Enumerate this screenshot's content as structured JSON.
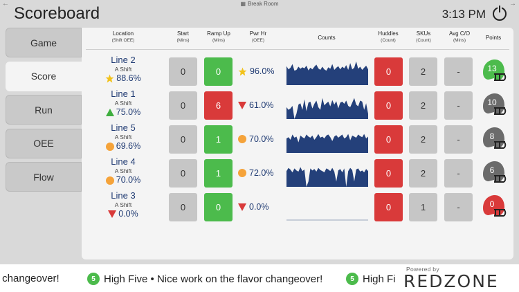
{
  "window": {
    "left_arrow": "←",
    "right_arrow": "→",
    "room_label": "Break Room",
    "room_icon": "grid-icon"
  },
  "app_title": "Scoreboard",
  "clock": "3:13 PM",
  "sidebar": {
    "items": [
      {
        "label": "Game",
        "active": false
      },
      {
        "label": "Score",
        "active": true
      },
      {
        "label": "Run",
        "active": false
      },
      {
        "label": "OEE",
        "active": false
      },
      {
        "label": "Flow",
        "active": false
      }
    ]
  },
  "columns": {
    "location": {
      "title": "Location",
      "sub": "(Shift OEE)"
    },
    "start": {
      "title": "Start",
      "sub": "(Mins)"
    },
    "ramp_up": {
      "title": "Ramp Up",
      "sub": "(Mins)"
    },
    "pwr_hr": {
      "title": "Pwr Hr",
      "sub": "(OEE)"
    },
    "counts": {
      "title": "Counts",
      "sub": ""
    },
    "huddles": {
      "title": "Huddles",
      "sub": "(Count)"
    },
    "skus": {
      "title": "SKUs",
      "sub": "(Count)"
    },
    "avg_co": {
      "title": "Avg C/O",
      "sub": "(Mins)"
    },
    "points": {
      "title": "Points",
      "sub": ""
    }
  },
  "rows": [
    {
      "line": "Line 2",
      "shift": "A Shift",
      "oee": "88.6%",
      "oee_icon": "star",
      "start": "0",
      "start_color": "gray",
      "ramp_up": "0",
      "ramp_color": "green",
      "pwr_hr": "96.0%",
      "pwr_icon": "star",
      "huddles": "0",
      "skus": "2",
      "avg_co": "-",
      "points": "13",
      "helmet_color": "#4cbb4c",
      "counts_fill": [
        0.72,
        0.6,
        0.66,
        0.8,
        0.55,
        0.58,
        0.7,
        0.62,
        0.68,
        0.64,
        0.74,
        0.56,
        0.66,
        0.6,
        0.7,
        0.78,
        0.64,
        0.58,
        0.7,
        0.6,
        0.55,
        0.68,
        0.62,
        0.8,
        0.58,
        0.66,
        0.72,
        0.6,
        0.7,
        0.64,
        0.76,
        0.58,
        0.84,
        0.6,
        0.66,
        0.9,
        0.62,
        0.7,
        0.58,
        0.66,
        0.74,
        0.6
      ]
    },
    {
      "line": "Line 1",
      "shift": "A Shift",
      "oee": "75.0%",
      "oee_icon": "up",
      "start": "0",
      "start_color": "gray",
      "ramp_up": "6",
      "ramp_color": "red",
      "pwr_hr": "61.0%",
      "pwr_icon": "down",
      "huddles": "0",
      "skus": "2",
      "avg_co": "-",
      "points": "10",
      "helmet_color": "#6b6b6b",
      "counts_fill": [
        0.45,
        0.35,
        0.4,
        0.5,
        0.0,
        0.2,
        0.55,
        0.6,
        0.35,
        0.75,
        0.3,
        0.62,
        0.66,
        0.4,
        0.58,
        0.7,
        0.45,
        0.35,
        0.8,
        0.52,
        0.6,
        0.66,
        0.48,
        0.72,
        0.55,
        0.68,
        0.4,
        0.62,
        0.66,
        0.58,
        0.7,
        0.5,
        0.45,
        0.62,
        0.8,
        0.55,
        0.48,
        0.7,
        0.66,
        0.35,
        0.6,
        0.2
      ]
    },
    {
      "line": "Line 5",
      "shift": "A Shift",
      "oee": "69.6%",
      "oee_icon": "dot",
      "start": "0",
      "start_color": "gray",
      "ramp_up": "1",
      "ramp_color": "green",
      "pwr_hr": "70.0%",
      "pwr_icon": "dot",
      "huddles": "0",
      "skus": "2",
      "avg_co": "-",
      "points": "8",
      "helmet_color": "#6b6b6b",
      "counts_fill": [
        0.55,
        0.6,
        0.5,
        0.7,
        0.58,
        0.62,
        0.4,
        0.66,
        0.6,
        0.55,
        0.7,
        0.62,
        0.58,
        0.66,
        0.5,
        0.6,
        0.72,
        0.58,
        0.62,
        0.55,
        0.66,
        0.7,
        0.6,
        0.45,
        0.62,
        0.68,
        0.58,
        0.64,
        0.7,
        0.55,
        0.6,
        0.72,
        0.48,
        0.66,
        0.62,
        0.58,
        0.7,
        0.64,
        0.6,
        0.72,
        0.55,
        0.62
      ]
    },
    {
      "line": "Line 4",
      "shift": "A Shift",
      "oee": "70.0%",
      "oee_icon": "dot",
      "start": "0",
      "start_color": "gray",
      "ramp_up": "1",
      "ramp_color": "green",
      "pwr_hr": "72.0%",
      "pwr_icon": "dot",
      "huddles": "0",
      "skus": "2",
      "avg_co": "-",
      "points": "6",
      "helmet_color": "#6b6b6b",
      "counts_fill": [
        0.6,
        0.72,
        0.65,
        0.55,
        0.7,
        0.62,
        0.58,
        0.75,
        0.6,
        0.66,
        0.0,
        0.2,
        0.7,
        0.62,
        0.68,
        0.58,
        0.72,
        0.64,
        0.6,
        0.55,
        0.7,
        0.66,
        0.6,
        0.72,
        0.58,
        0.2,
        0.62,
        0.68,
        0.55,
        0.7,
        0.0,
        0.6,
        0.72,
        0.64,
        0.2,
        0.66,
        0.7,
        0.58,
        0.62,
        0.55,
        0.68,
        0.6
      ]
    },
    {
      "line": "Line 3",
      "shift": "A Shift",
      "oee": "0.0%",
      "oee_icon": "down",
      "start": "0",
      "start_color": "gray",
      "ramp_up": "0",
      "ramp_color": "green",
      "pwr_hr": "0.0%",
      "pwr_icon": "down",
      "huddles": "0",
      "skus": "1",
      "avg_co": "-",
      "points": "0",
      "helmet_color": "#d93a3a",
      "counts_fill": []
    }
  ],
  "ticker": {
    "items": [
      {
        "text": "r changeover!",
        "icon": "hand-icon",
        "badge": "5"
      },
      {
        "text": "High Five • Nice work on the flavor changeover!",
        "icon": "hand-icon",
        "badge": "5"
      },
      {
        "text": "High Fi",
        "icon": "hand-icon",
        "badge": "5"
      }
    ],
    "powered_by": "Powered by",
    "brand": "REDZONE"
  },
  "colors": {
    "green": "#4cbb4c",
    "red": "#d93a3a",
    "gray": "#c6c6c6",
    "navy": "#1f3a72",
    "orange": "#f5a33a"
  }
}
